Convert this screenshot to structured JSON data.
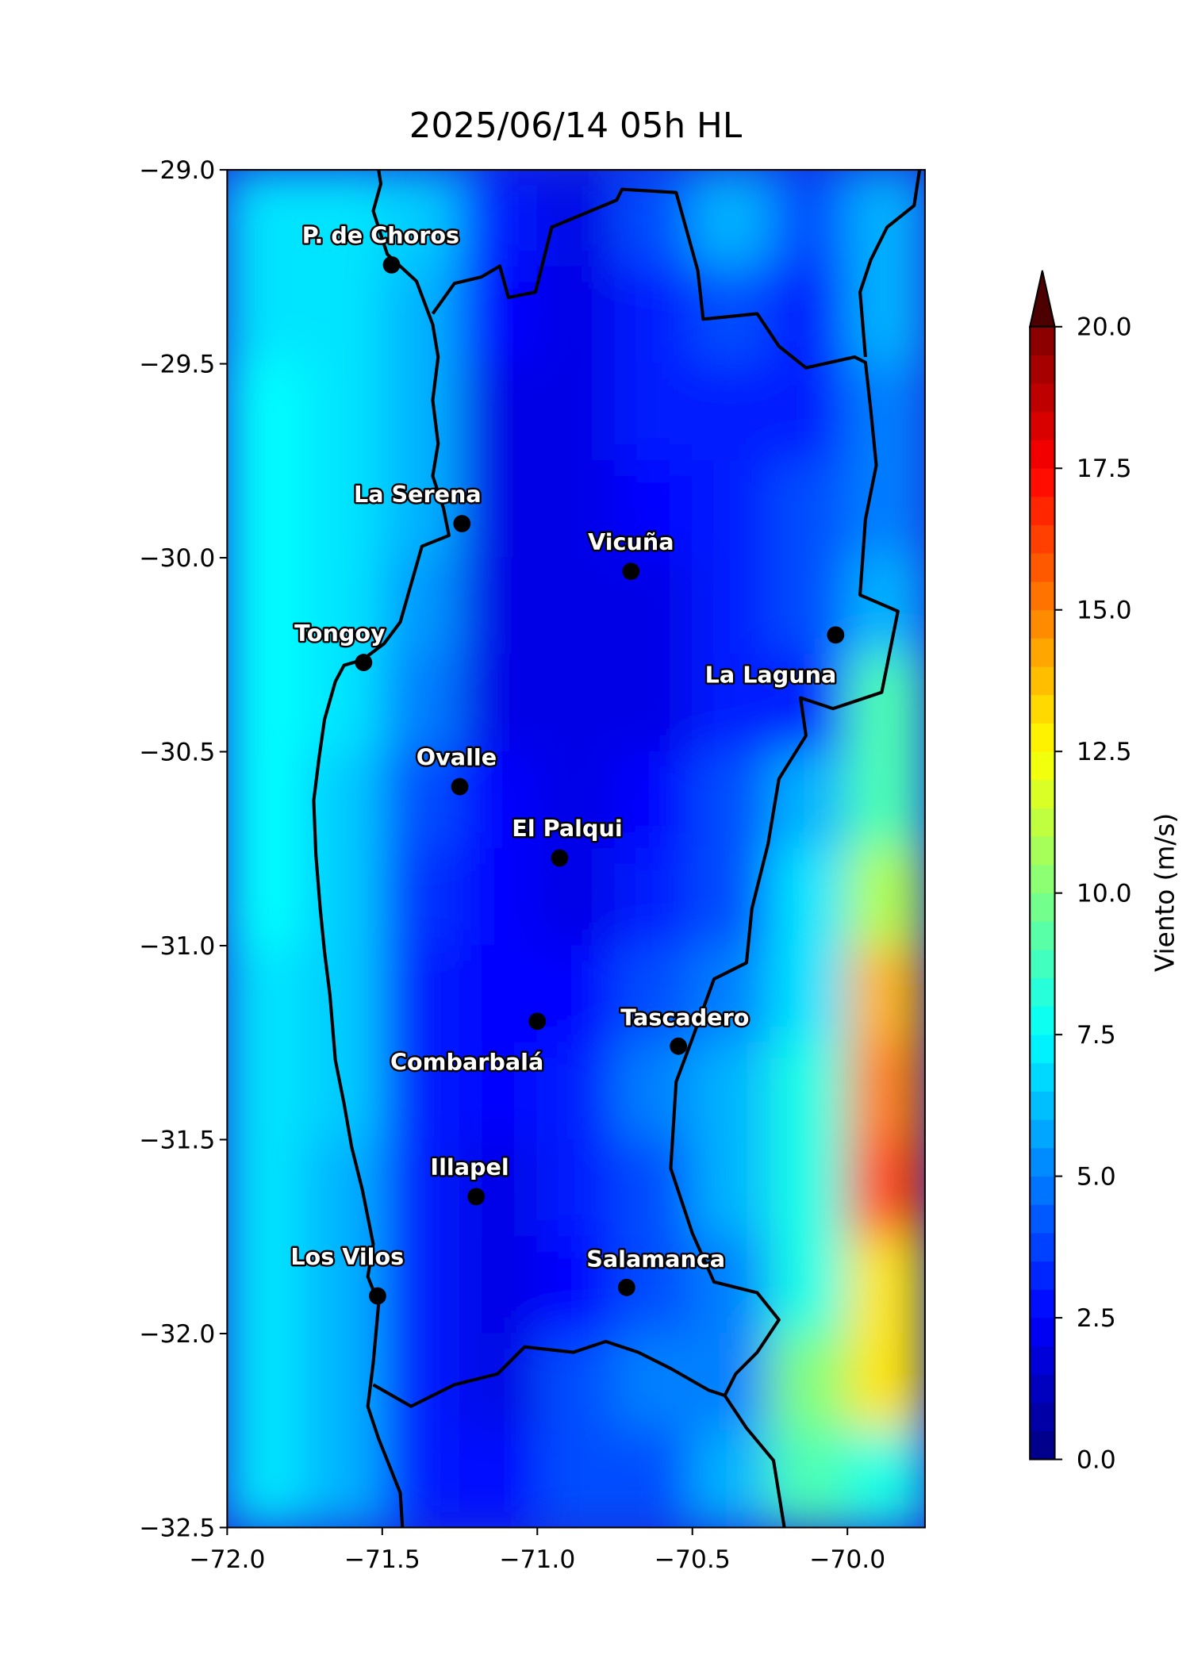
{
  "chart_data": {
    "type": "heatmap",
    "title": "2025/06/14 05h HL",
    "xlim": [
      -72.0,
      -69.75
    ],
    "ylim": [
      -32.5,
      -29.0
    ],
    "xticks": [
      {
        "value": -72.0,
        "label": "−72.0"
      },
      {
        "value": -71.5,
        "label": "−71.5"
      },
      {
        "value": -71.0,
        "label": "−71.0"
      },
      {
        "value": -70.5,
        "label": "−70.5"
      },
      {
        "value": -70.0,
        "label": "−70.0"
      }
    ],
    "yticks": [
      {
        "value": -29.0,
        "label": "−29.0"
      },
      {
        "value": -29.5,
        "label": "−29.5"
      },
      {
        "value": -30.0,
        "label": "−30.0"
      },
      {
        "value": -30.5,
        "label": "−30.5"
      },
      {
        "value": -31.0,
        "label": "−31.0"
      },
      {
        "value": -31.5,
        "label": "−31.5"
      },
      {
        "value": -32.0,
        "label": "−32.0"
      },
      {
        "value": -32.5,
        "label": "−32.5"
      }
    ],
    "x": [
      -71.875,
      -71.625,
      -71.375,
      -71.125,
      -70.875,
      -70.625,
      -70.375,
      -70.125,
      -69.875
    ],
    "y": [
      -29.125,
      -29.375,
      -29.625,
      -29.875,
      -30.125,
      -30.375,
      -30.625,
      -30.875,
      -31.125,
      -31.375,
      -31.625,
      -31.875,
      -32.125,
      -32.375
    ],
    "z": [
      [
        7,
        7,
        6.5,
        3,
        2,
        4,
        6,
        4,
        6
      ],
      [
        7,
        7,
        6,
        2.5,
        2,
        3,
        4,
        3,
        6
      ],
      [
        7.5,
        7,
        6,
        2,
        2,
        3,
        3,
        3,
        5
      ],
      [
        7.5,
        7,
        6,
        2,
        2,
        2.5,
        3,
        4,
        5
      ],
      [
        7.5,
        7,
        5.5,
        2,
        2,
        2,
        3,
        4,
        6
      ],
      [
        7.5,
        7,
        5,
        2,
        2,
        2,
        3,
        3,
        9
      ],
      [
        7.5,
        6.5,
        4,
        2.5,
        2,
        2.5,
        4,
        6,
        9
      ],
      [
        7.5,
        6.5,
        3.5,
        2.5,
        2,
        3,
        4,
        7,
        11
      ],
      [
        7,
        6.5,
        3,
        2.5,
        2.5,
        4,
        5,
        7,
        14
      ],
      [
        7,
        6.5,
        3,
        2.5,
        3,
        5,
        6,
        8,
        15
      ],
      [
        7,
        6,
        3,
        2,
        3,
        4,
        6,
        8,
        16
      ],
      [
        7,
        6,
        3,
        2,
        2.5,
        4,
        5,
        8,
        13
      ],
      [
        7,
        6,
        3,
        2,
        4,
        5,
        5,
        10,
        13
      ],
      [
        7,
        6,
        3,
        2.5,
        4,
        4,
        6,
        9,
        8
      ]
    ],
    "colorbar": {
      "label": "Viento (m/s)",
      "lim": [
        0,
        20
      ],
      "extend": "max",
      "ticks": [
        {
          "value": 0,
          "label": "0.0"
        },
        {
          "value": 2.5,
          "label": "2.5"
        },
        {
          "value": 5,
          "label": "5.0"
        },
        {
          "value": 7.5,
          "label": "7.5"
        },
        {
          "value": 10,
          "label": "10.0"
        },
        {
          "value": 12.5,
          "label": "12.5"
        },
        {
          "value": 15,
          "label": "15.0"
        },
        {
          "value": 17.5,
          "label": "17.5"
        },
        {
          "value": 20,
          "label": "20.0"
        }
      ]
    },
    "cities": [
      {
        "name": "P. de Choros",
        "lon": -71.47,
        "lat": -29.245
      },
      {
        "name": "La Serena",
        "lon": -71.243,
        "lat": -29.912
      },
      {
        "name": "Vicuña",
        "lon": -70.698,
        "lat": -30.035
      },
      {
        "name": "La Laguna",
        "lon": -70.038,
        "lat": -30.199
      },
      {
        "name": "Tongoy",
        "lon": -71.56,
        "lat": -30.27
      },
      {
        "name": "Ovalle",
        "lon": -71.25,
        "lat": -30.59
      },
      {
        "name": "El Palqui",
        "lon": -70.928,
        "lat": -30.774
      },
      {
        "name": "Combarbalá",
        "lon": -71.0,
        "lat": -31.195
      },
      {
        "name": "Tascadero",
        "lon": -70.545,
        "lat": -31.259
      },
      {
        "name": "Illapel",
        "lon": -71.197,
        "lat": -31.647
      },
      {
        "name": "Los Vilos",
        "lon": -71.515,
        "lat": -31.903
      },
      {
        "name": "Salamanca",
        "lon": -70.712,
        "lat": -31.881
      }
    ]
  }
}
